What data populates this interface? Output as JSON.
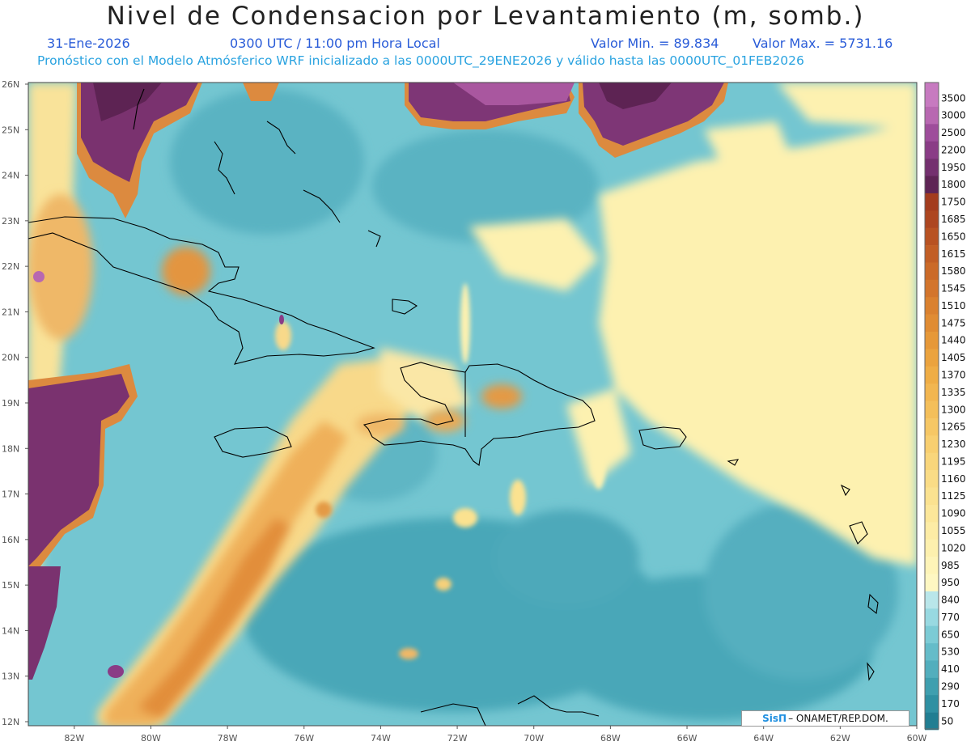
{
  "title": "Nivel de Condensacion por Levantamiento (m, somb.)",
  "header": {
    "date": "31-Ene-2026",
    "time": "0300 UTC / 11:00 pm Hora Local",
    "min_label": "Valor Min. = 89.834",
    "max_label": "Valor Max. = 5731.16",
    "model_line": "Pronóstico con el Modelo Atmósferico WRF inicializado a las 0000UTC_29ENE2026 y válido hasta las  0000UTC_01FEB2026"
  },
  "map": {
    "lat_labels": [
      "26N",
      "25N",
      "24N",
      "23N",
      "22N",
      "21N",
      "20N",
      "19N",
      "18N",
      "17N",
      "16N",
      "15N",
      "14N",
      "13N",
      "12N"
    ],
    "lon_labels": [
      "82W",
      "80W",
      "78W",
      "76W",
      "74W",
      "72W",
      "70W",
      "68W",
      "66W",
      "64W",
      "62W",
      "60W"
    ],
    "lat_range": [
      12,
      26
    ],
    "lon_range": [
      -83.2,
      -60
    ],
    "colors": {
      "ocean_base": "#6fc3cf",
      "land_outline": "#000000"
    }
  },
  "colorbar": {
    "levels": [
      "3500",
      "3000",
      "2500",
      "2200",
      "1950",
      "1800",
      "1750",
      "1685",
      "1650",
      "1615",
      "1580",
      "1545",
      "1510",
      "1475",
      "1440",
      "1405",
      "1370",
      "1335",
      "1300",
      "1265",
      "1230",
      "1195",
      "1160",
      "1125",
      "1090",
      "1055",
      "1020",
      "985",
      "950",
      "840",
      "770",
      "650",
      "530",
      "410",
      "290",
      "170",
      "50"
    ],
    "colors": [
      "#c77ac0",
      "#b868b1",
      "#9e4d9b",
      "#8a3c86",
      "#74306f",
      "#5e2455",
      "#a33c1e",
      "#ad4620",
      "#b85222",
      "#c25e25",
      "#cb6a28",
      "#d3752c",
      "#da812f",
      "#e08c33",
      "#e69838",
      "#eba33e",
      "#efad45",
      "#f2b650",
      "#f4bf5a",
      "#f6c765",
      "#f8cf70",
      "#f9d67b",
      "#fadc86",
      "#fbe290",
      "#fce79a",
      "#fdeca5",
      "#fdf0ae",
      "#fef4b8",
      "#fef7c2",
      "#b9e6ea",
      "#98d9e1",
      "#7ccbd5",
      "#65bcc9",
      "#52aebd",
      "#3f9faf",
      "#2f90a2",
      "#217e92"
    ]
  },
  "credit": {
    "logo_text": "SisΠ",
    "text": "– ONAMET/REP.DOM."
  }
}
